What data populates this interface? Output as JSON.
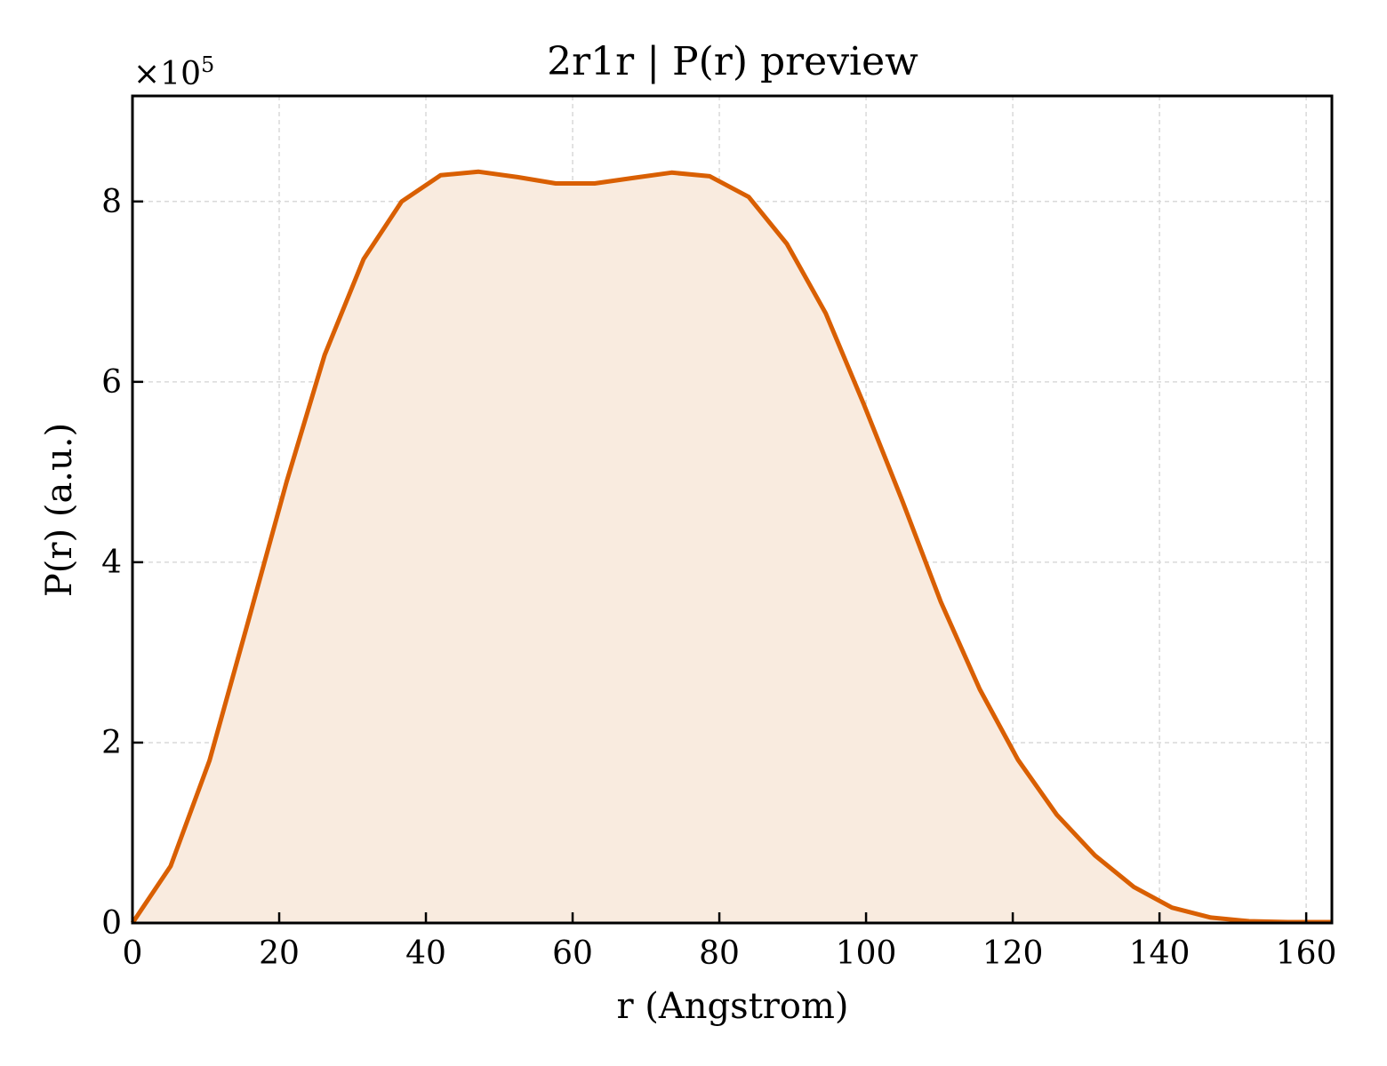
{
  "chart_data": {
    "type": "area",
    "title": "2r1r | P(r) preview",
    "xlabel": "r (Angstrom)",
    "ylabel": "P(r) (a.u.)",
    "y_offset_label": "×10",
    "y_offset_exponent": "5",
    "xlim": [
      0,
      163.5
    ],
    "ylim": [
      0,
      9.17
    ],
    "x_ticks": [
      0,
      20,
      40,
      60,
      80,
      100,
      120,
      140,
      160
    ],
    "y_ticks": [
      0,
      2,
      4,
      6,
      8
    ],
    "grid": true,
    "legend": "none",
    "series": [
      {
        "x": [
          0,
          5.2,
          10.5,
          15.7,
          21.0,
          26.2,
          31.5,
          36.7,
          42.0,
          47.2,
          52.5,
          57.7,
          63.0,
          68.2,
          73.5,
          78.7,
          84.0,
          89.2,
          94.5,
          99.7,
          105.0,
          110.2,
          115.5,
          120.7,
          126.0,
          131.2,
          136.5,
          141.7,
          147.0,
          152.2,
          157.5,
          163.5
        ],
        "y": [
          0.0,
          0.63,
          1.8,
          3.32,
          4.89,
          6.3,
          7.36,
          8.0,
          8.29,
          8.33,
          8.27,
          8.2,
          8.2,
          8.26,
          8.32,
          8.28,
          8.05,
          7.53,
          6.76,
          5.75,
          4.67,
          3.56,
          2.59,
          1.81,
          1.2,
          0.75,
          0.4,
          0.17,
          0.06,
          0.02,
          0.01,
          0.01
        ]
      }
    ],
    "colors": {
      "line": "#d95f02",
      "fill": "#f9ebdf",
      "grid": "#d9d9d9",
      "axis": "#000000"
    }
  }
}
